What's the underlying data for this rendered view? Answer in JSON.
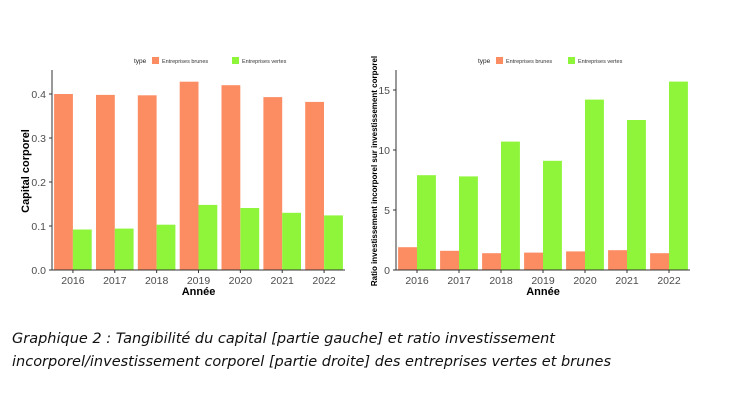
{
  "caption": "Graphique 2 : Tangibilité du capital [partie gauche] et ratio investissement incorporel/investissement corporel [partie droite] des entreprises vertes et brunes",
  "colors": {
    "brunes": "#fc8d62",
    "vertes": "#8ef53a",
    "axis": "#333333",
    "tick_text": "#4d4d4d"
  },
  "chart_data": [
    {
      "type": "bar",
      "legend": {
        "title": "type",
        "position": "top"
      },
      "categories": [
        "2016",
        "2017",
        "2018",
        "2019",
        "2020",
        "2021",
        "2022"
      ],
      "series": [
        {
          "name": "Entreprises brunes",
          "color": "#fc8d62",
          "values": [
            0.4,
            0.398,
            0.397,
            0.428,
            0.42,
            0.393,
            0.382
          ]
        },
        {
          "name": "Entreprises vertes",
          "color": "#8ef53a",
          "values": [
            0.092,
            0.094,
            0.103,
            0.148,
            0.141,
            0.13,
            0.124
          ]
        }
      ],
      "xlabel": "Année",
      "ylabel": "Capital corporel",
      "ylim": [
        0,
        0.45
      ],
      "yticks": [
        "0.0",
        "0.1",
        "0.2",
        "0.3",
        "0.4"
      ],
      "grid": false
    },
    {
      "type": "bar",
      "legend": {
        "title": "type",
        "position": "top"
      },
      "categories": [
        "2016",
        "2017",
        "2018",
        "2019",
        "2020",
        "2021",
        "2022"
      ],
      "series": [
        {
          "name": "Entreprises brunes",
          "color": "#fc8d62",
          "values": [
            1.9,
            1.6,
            1.4,
            1.45,
            1.55,
            1.65,
            1.4
          ]
        },
        {
          "name": "Entreprises vertes",
          "color": "#8ef53a",
          "values": [
            7.9,
            7.8,
            10.7,
            9.1,
            14.2,
            12.5,
            15.7
          ]
        }
      ],
      "xlabel": "Année",
      "ylabel": "Ratio investissement incorporel sur investissement corporel",
      "ylim": [
        0,
        16.5
      ],
      "yticks": [
        "0",
        "5",
        "10",
        "15"
      ],
      "grid": false
    }
  ]
}
